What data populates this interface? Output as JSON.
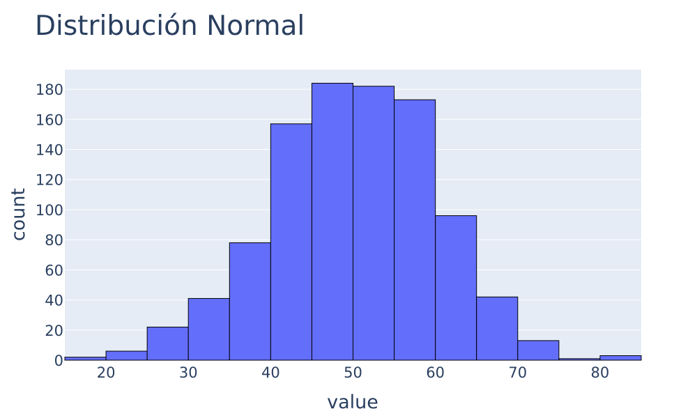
{
  "chart_data": {
    "type": "bar",
    "title": "Distribución Normal",
    "xlabel": "value",
    "ylabel": "count",
    "xlim": [
      15,
      85
    ],
    "ylim": [
      0,
      193
    ],
    "x_ticks": [
      20,
      30,
      40,
      50,
      60,
      70,
      80
    ],
    "y_ticks": [
      0,
      20,
      40,
      60,
      80,
      100,
      120,
      140,
      160,
      180
    ],
    "bin_width": 5,
    "bins": [
      {
        "start": 15,
        "end": 20,
        "count": 2
      },
      {
        "start": 20,
        "end": 25,
        "count": 6
      },
      {
        "start": 25,
        "end": 30,
        "count": 22
      },
      {
        "start": 30,
        "end": 35,
        "count": 41
      },
      {
        "start": 35,
        "end": 40,
        "count": 78
      },
      {
        "start": 40,
        "end": 45,
        "count": 157
      },
      {
        "start": 45,
        "end": 50,
        "count": 184
      },
      {
        "start": 50,
        "end": 55,
        "count": 182
      },
      {
        "start": 55,
        "end": 60,
        "count": 173
      },
      {
        "start": 60,
        "end": 65,
        "count": 96
      },
      {
        "start": 65,
        "end": 70,
        "count": 42
      },
      {
        "start": 70,
        "end": 75,
        "count": 13
      },
      {
        "start": 75,
        "end": 80,
        "count": 1
      },
      {
        "start": 80,
        "end": 85,
        "count": 3
      }
    ],
    "bar_color": "#636efa",
    "bar_outline_color": "#000000",
    "plot_background": "#e5ecf6",
    "grid": true,
    "grid_color": "#ffffff",
    "text_color": "#2a3f5f"
  }
}
